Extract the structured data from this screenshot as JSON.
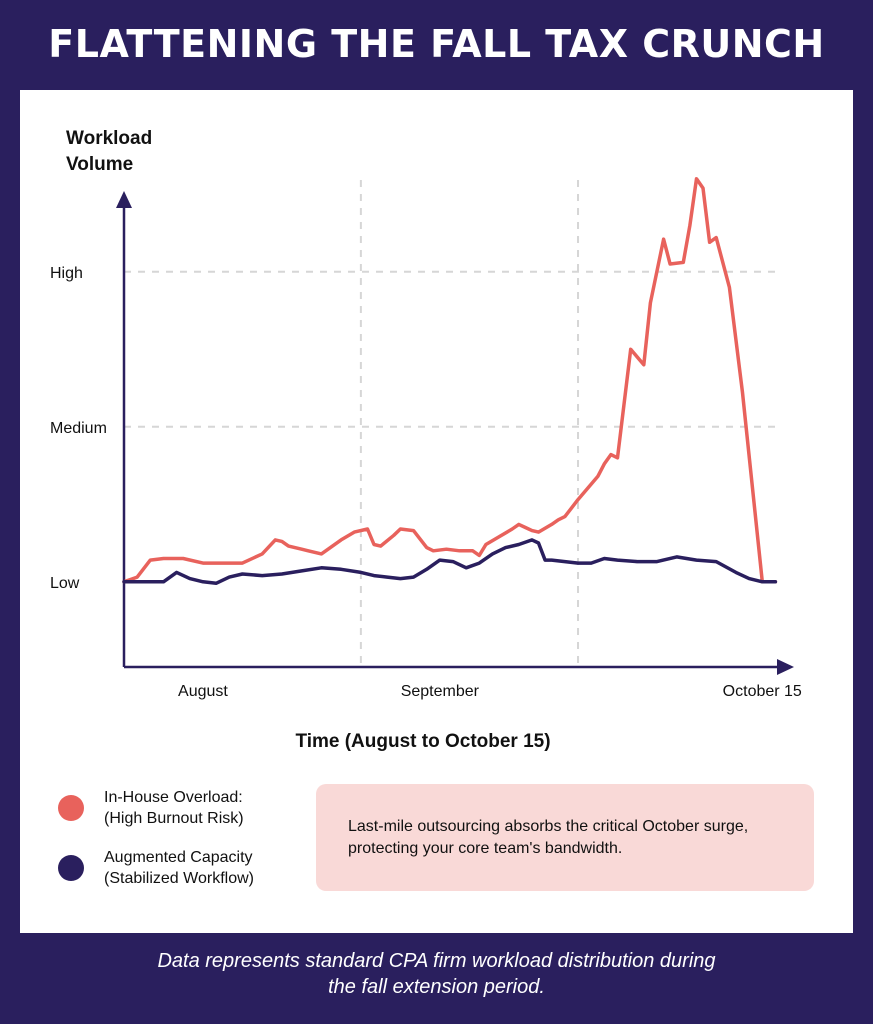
{
  "title": "FLATTENING THE FALL TAX CRUNCH",
  "chart_data": {
    "type": "line",
    "ylabel": "Workload\nVolume",
    "xlabel": "Time (August to October 15)",
    "y_ticks": [
      {
        "label": "Low",
        "value": 1
      },
      {
        "label": "Medium",
        "value": 2
      },
      {
        "label": "High",
        "value": 3
      }
    ],
    "ylim": [
      0.45,
      3.45
    ],
    "x_ticks": [
      {
        "label": "August",
        "x": 12
      },
      {
        "label": "September",
        "x": 48
      },
      {
        "label": "October 15",
        "x": 97
      }
    ],
    "x_dividers": [
      36,
      69
    ],
    "xlim": [
      0,
      100
    ],
    "grid": "dashed",
    "series": [
      {
        "name": "In-House Overload:\n(High Burnout Risk)",
        "color": "#e8625c",
        "x": [
          0,
          2,
          4,
          6,
          9,
          12,
          15,
          18,
          21,
          23,
          24,
          25,
          27,
          28,
          30,
          33,
          35,
          37,
          38,
          39,
          41,
          42,
          44,
          46,
          47,
          49,
          51,
          53,
          54,
          55,
          57,
          59,
          60,
          61,
          62,
          63,
          65,
          66,
          67,
          69,
          71,
          72,
          73,
          74,
          75,
          77,
          79,
          80,
          82,
          83,
          85,
          86,
          87,
          88,
          89,
          90,
          92,
          94,
          97,
          99
        ],
        "values": [
          1.0,
          1.03,
          1.14,
          1.15,
          1.15,
          1.12,
          1.12,
          1.12,
          1.18,
          1.27,
          1.26,
          1.23,
          1.21,
          1.2,
          1.18,
          1.27,
          1.32,
          1.34,
          1.24,
          1.23,
          1.3,
          1.34,
          1.33,
          1.22,
          1.2,
          1.21,
          1.2,
          1.2,
          1.17,
          1.24,
          1.29,
          1.34,
          1.37,
          1.35,
          1.33,
          1.32,
          1.37,
          1.4,
          1.42,
          1.53,
          1.63,
          1.68,
          1.76,
          1.82,
          1.8,
          2.5,
          2.4,
          2.8,
          3.21,
          3.05,
          3.06,
          3.3,
          3.6,
          3.54,
          3.19,
          3.22,
          2.9,
          2.22,
          1.0,
          1.0
        ]
      },
      {
        "name": "Augmented Capacity\n(Stabilized Workflow)",
        "color": "#2a1f5e",
        "x": [
          0,
          4,
          6,
          8,
          10,
          12,
          14,
          16,
          18,
          21,
          24,
          27,
          30,
          33,
          36,
          38,
          40,
          42,
          44,
          46,
          48,
          50,
          52,
          54,
          56,
          58,
          60,
          62,
          63,
          64,
          65,
          67,
          69,
          71,
          73,
          75,
          78,
          81,
          84,
          87,
          90,
          93,
          95,
          97,
          99
        ],
        "values": [
          1.0,
          1.0,
          1.0,
          1.06,
          1.02,
          1.0,
          0.99,
          1.03,
          1.05,
          1.04,
          1.05,
          1.07,
          1.09,
          1.08,
          1.06,
          1.04,
          1.03,
          1.02,
          1.03,
          1.08,
          1.14,
          1.13,
          1.09,
          1.12,
          1.18,
          1.22,
          1.24,
          1.27,
          1.25,
          1.14,
          1.14,
          1.13,
          1.12,
          1.12,
          1.15,
          1.14,
          1.13,
          1.13,
          1.16,
          1.14,
          1.13,
          1.06,
          1.02,
          1.0,
          1.0
        ]
      }
    ]
  },
  "legend": [
    {
      "label": "In-House Overload:\n(High Burnout Risk)",
      "color": "#e8625c"
    },
    {
      "label": "Augmented Capacity\n(Stabilized Workflow)",
      "color": "#2a1f5e"
    }
  ],
  "callout": "Last-mile outsourcing absorbs the critical October surge, protecting your core team's bandwidth.",
  "footnote": "Data represents standard CPA firm workload distribution during\nthe fall extension period."
}
